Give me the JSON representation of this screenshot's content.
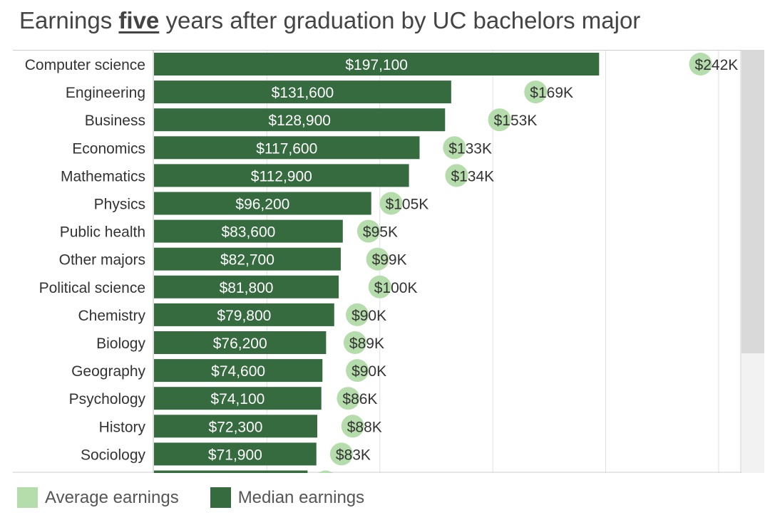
{
  "title": {
    "before": "Earnings ",
    "emphasis": "five",
    "after": " years after graduation by UC bachelors major"
  },
  "legend": {
    "average_label": "Average earnings",
    "median_label": "Median earnings"
  },
  "colors": {
    "median_bar": "#356b3f",
    "average_dot": "#b5dcab",
    "gridline": "#e0e0e0",
    "bar_label": "#ffffff",
    "dot_label": "#333333",
    "category_label": "#333333"
  },
  "chart_data": {
    "type": "bar",
    "orientation": "horizontal",
    "categories": [
      "Computer science",
      "Engineering",
      "Business",
      "Economics",
      "Mathematics",
      "Physics",
      "Public health",
      "Other majors",
      "Political science",
      "Chemistry",
      "Biology",
      "Geography",
      "Psychology",
      "History",
      "Sociology"
    ],
    "series": [
      {
        "name": "Median earnings",
        "mark": "bar",
        "values": [
          197100,
          131600,
          128900,
          117600,
          112900,
          96200,
          83600,
          82700,
          81800,
          79800,
          76200,
          74600,
          74100,
          72300,
          71900
        ],
        "labels": [
          "$197,100",
          "$131,600",
          "$128,900",
          "$117,600",
          "$112,900",
          "$96,200",
          "$83,600",
          "$82,700",
          "$81,800",
          "$79,800",
          "$76,200",
          "$74,600",
          "$74,100",
          "$72,300",
          "$71,900"
        ]
      },
      {
        "name": "Average earnings",
        "mark": "circle",
        "values": [
          242000,
          169000,
          153000,
          133000,
          134000,
          105000,
          95000,
          99000,
          100000,
          90000,
          89000,
          90000,
          86000,
          88000,
          83000
        ],
        "labels": [
          "$242K",
          "$169K",
          "$153K",
          "$133K",
          "$134K",
          "$105K",
          "$95K",
          "$99K",
          "$100K",
          "$90K",
          "$89K",
          "$90K",
          "$86K",
          "$88K",
          "$83K"
        ]
      }
    ],
    "partial_next_row": {
      "median": 68000,
      "average": 76000
    },
    "xlim": [
      0,
      250000
    ],
    "x_gridlines": [
      50000,
      100000,
      150000,
      200000,
      250000
    ],
    "x_ticks_visible": false,
    "grid": true,
    "legend_position": "bottom-left"
  }
}
